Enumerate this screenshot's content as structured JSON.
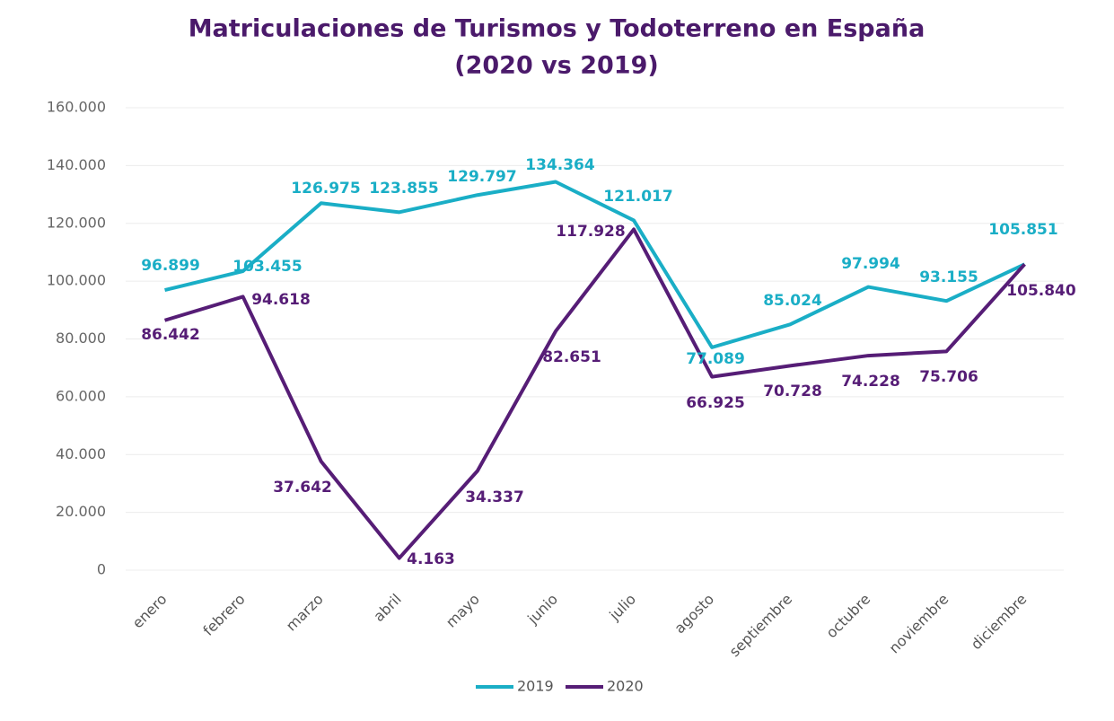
{
  "chart_data": {
    "type": "line",
    "title": [
      "Matriculaciones de Turismos y Todoterreno en España",
      "(2020 vs 2019)"
    ],
    "categories": [
      "enero",
      "febrero",
      "marzo",
      "abril",
      "mayo",
      "junio",
      "julio",
      "agosto",
      "septiembre",
      "octubre",
      "noviembre",
      "diciembre"
    ],
    "series": [
      {
        "name": "2019",
        "color": "#1aaec6",
        "values": [
          96899,
          103455,
          126975,
          123855,
          129797,
          134364,
          121017,
          77089,
          85024,
          97994,
          93155,
          105851
        ],
        "value_labels": [
          "96.899",
          "103.455",
          "126.975",
          "123.855",
          "129.797",
          "134.364",
          "121.017",
          "77.089",
          "85.024",
          "97.994",
          "93.155",
          "105.851"
        ]
      },
      {
        "name": "2020",
        "color": "#561d76",
        "values": [
          86442,
          94618,
          37642,
          4163,
          34337,
          82651,
          117928,
          66925,
          70728,
          74228,
          75706,
          105840
        ],
        "value_labels": [
          "86.442",
          "94.618",
          "37.642",
          "4.163",
          "34.337",
          "82.651",
          "117.928",
          "66.925",
          "70.728",
          "74.228",
          "75.706",
          "105.840"
        ]
      }
    ],
    "ylim": [
      0,
      160000
    ],
    "yticks": [
      0,
      {
        "value": 20000,
        "label": "20.000"
      },
      {
        "value": 40000,
        "label": "40.000"
      },
      {
        "value": 60000,
        "label": "60.000"
      },
      {
        "value": 80000,
        "label": "80.000"
      },
      {
        "value": 100000,
        "label": "100.000"
      },
      {
        "value": 120000,
        "label": "120.000"
      },
      {
        "value": 140000,
        "label": "140.000"
      },
      {
        "value": 160000,
        "label": "160.000"
      }
    ],
    "grid": true,
    "legend": "bottom"
  }
}
